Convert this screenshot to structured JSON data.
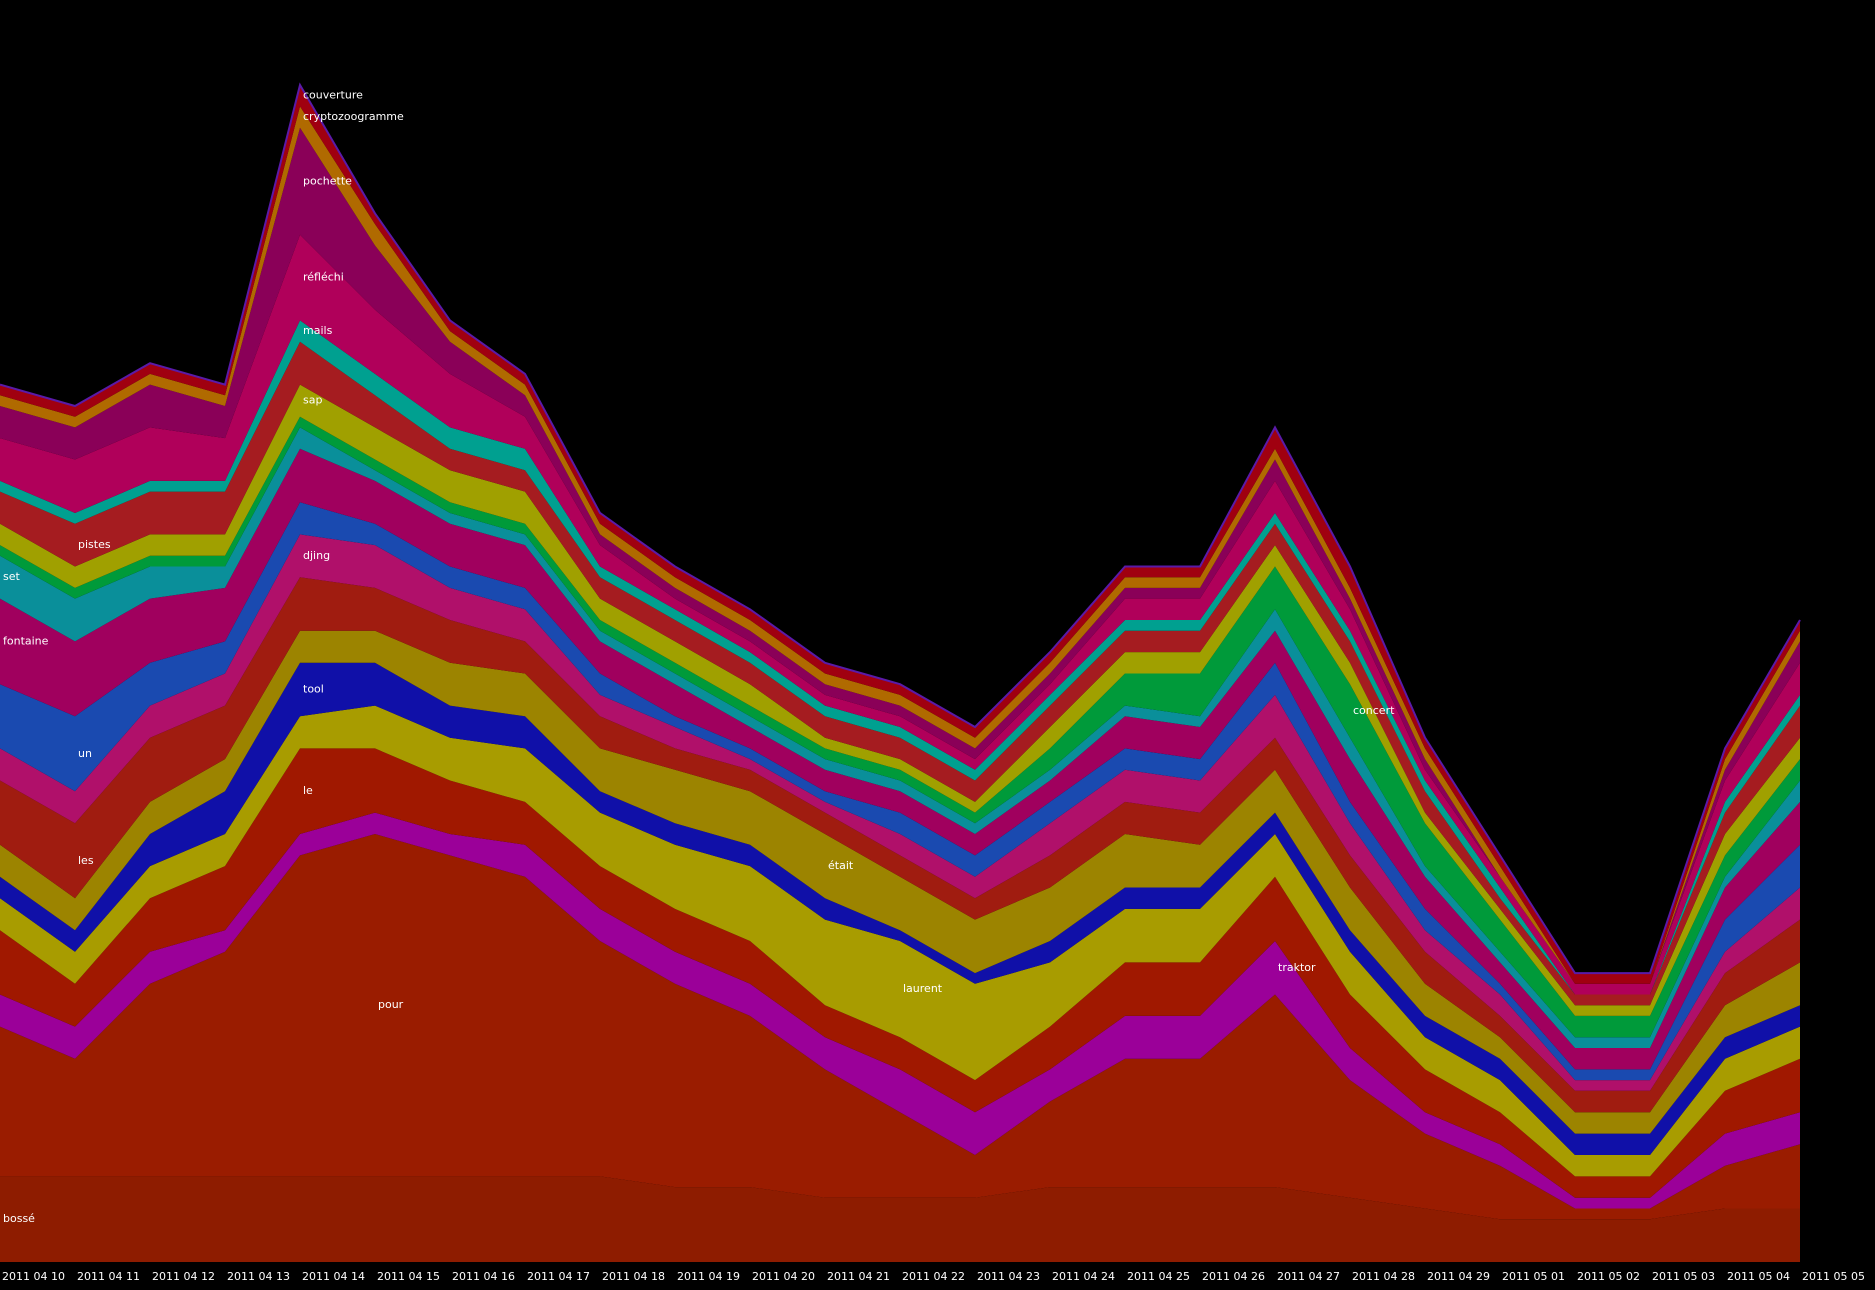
{
  "chart_data": {
    "type": "area",
    "stacked": true,
    "categories": [
      "2011 04 10",
      "2011 04 11",
      "2011 04 12",
      "2011 04 13",
      "2011 04 14",
      "2011 04 15",
      "2011 04 16",
      "2011 04 17",
      "2011 04 18",
      "2011 04 19",
      "2011 04 20",
      "2011 04 21",
      "2011 04 22",
      "2011 04 23",
      "2011 04 24",
      "2011 04 25",
      "2011 04 26",
      "2011 04 27",
      "2011 04 28",
      "2011 04 29",
      "2011 05 01",
      "2011 05 02",
      "2011 05 03",
      "2011 05 04",
      "2011 05 05"
    ],
    "series": [
      {
        "name": "bossé",
        "color": "#8e1c00",
        "values": [
          8,
          8,
          8,
          8,
          8,
          8,
          8,
          8,
          8,
          7,
          7,
          6,
          6,
          6,
          7,
          7,
          7,
          7,
          6,
          5,
          4,
          4,
          4,
          5,
          5
        ]
      },
      {
        "name": "pour",
        "color": "#9a1c00",
        "values": [
          14,
          11,
          18,
          21,
          30,
          32,
          30,
          28,
          22,
          19,
          16,
          12,
          8,
          4,
          8,
          12,
          12,
          18,
          11,
          7,
          5,
          1,
          1,
          4,
          6
        ]
      },
      {
        "name": "traktor",
        "color": "#9b0099",
        "values": [
          3,
          3,
          3,
          2,
          2,
          2,
          2,
          3,
          3,
          3,
          3,
          3,
          4,
          4,
          3,
          4,
          4,
          5,
          3,
          2,
          2,
          1,
          1,
          3,
          3
        ]
      },
      {
        "name": "le",
        "color": "#a01800",
        "values": [
          6,
          4,
          5,
          6,
          8,
          6,
          5,
          4,
          4,
          4,
          4,
          3,
          3,
          3,
          4,
          5,
          5,
          6,
          5,
          4,
          3,
          2,
          2,
          4,
          5
        ]
      },
      {
        "name": "laurent",
        "color": "#a89c00",
        "values": [
          3,
          3,
          3,
          3,
          3,
          4,
          4,
          5,
          5,
          6,
          7,
          8,
          9,
          9,
          6,
          5,
          5,
          4,
          4,
          3,
          3,
          2,
          2,
          3,
          3
        ]
      },
      {
        "name": "tool",
        "color": "#1010a8",
        "values": [
          2,
          2,
          3,
          4,
          5,
          4,
          3,
          3,
          2,
          2,
          2,
          2,
          1,
          1,
          2,
          2,
          2,
          2,
          2,
          2,
          2,
          2,
          2,
          2,
          2
        ]
      },
      {
        "name": "était",
        "color": "#9c8400",
        "values": [
          3,
          3,
          3,
          3,
          3,
          3,
          4,
          4,
          4,
          5,
          5,
          6,
          5,
          5,
          5,
          5,
          4,
          4,
          4,
          3,
          2,
          2,
          2,
          3,
          4
        ]
      },
      {
        "name": "les",
        "color": "#a01c10",
        "values": [
          6,
          7,
          6,
          5,
          5,
          4,
          4,
          3,
          3,
          2,
          2,
          2,
          2,
          2,
          3,
          3,
          3,
          3,
          3,
          3,
          2,
          2,
          2,
          3,
          4
        ]
      },
      {
        "name": "djing",
        "color": "#b0106a",
        "values": [
          3,
          3,
          3,
          3,
          4,
          4,
          3,
          3,
          2,
          2,
          1,
          1,
          2,
          2,
          3,
          3,
          3,
          4,
          3,
          2,
          2,
          1,
          1,
          2,
          3
        ]
      },
      {
        "name": "un",
        "color": "#1a4ab0",
        "values": [
          6,
          7,
          4,
          3,
          3,
          2,
          2,
          2,
          2,
          1,
          1,
          1,
          2,
          2,
          2,
          2,
          2,
          3,
          2,
          2,
          1,
          1,
          1,
          3,
          4
        ]
      },
      {
        "name": "fontaine",
        "color": "#a0005e",
        "values": [
          8,
          7,
          6,
          5,
          5,
          4,
          4,
          4,
          3,
          3,
          2,
          2,
          2,
          2,
          2,
          3,
          3,
          3,
          4,
          3,
          2,
          2,
          2,
          3,
          4
        ]
      },
      {
        "name": "set",
        "color": "#0a8f9a",
        "values": [
          4,
          4,
          3,
          2,
          2,
          1,
          1,
          1,
          1,
          1,
          1,
          1,
          1,
          1,
          1,
          1,
          1,
          2,
          2,
          1,
          1,
          1,
          1,
          1,
          2
        ]
      },
      {
        "name": "concert",
        "color": "#009a3a",
        "values": [
          1,
          1,
          1,
          1,
          1,
          1,
          1,
          1,
          1,
          1,
          1,
          1,
          1,
          1,
          2,
          3,
          4,
          4,
          5,
          4,
          3,
          2,
          2,
          2,
          2
        ]
      },
      {
        "name": "sap",
        "color": "#a0a000",
        "values": [
          2,
          2,
          2,
          2,
          3,
          3,
          3,
          3,
          2,
          2,
          2,
          1,
          1,
          1,
          2,
          2,
          2,
          2,
          2,
          1,
          1,
          1,
          1,
          2,
          2
        ]
      },
      {
        "name": "pistes",
        "color": "#a51c20",
        "values": [
          3,
          4,
          4,
          4,
          4,
          3,
          2,
          2,
          2,
          2,
          2,
          2,
          2,
          2,
          2,
          2,
          2,
          2,
          2,
          2,
          1,
          1,
          1,
          2,
          3
        ]
      },
      {
        "name": "mails",
        "color": "#00a090",
        "values": [
          1,
          1,
          1,
          1,
          2,
          2,
          2,
          2,
          1,
          1,
          1,
          1,
          1,
          1,
          1,
          1,
          1,
          1,
          1,
          1,
          1,
          0,
          0,
          1,
          1
        ]
      },
      {
        "name": "réfléchi",
        "color": "#b0005a",
        "values": [
          4,
          5,
          5,
          4,
          8,
          6,
          5,
          3,
          2,
          1,
          1,
          1,
          1,
          1,
          1,
          2,
          2,
          3,
          2,
          1,
          1,
          1,
          1,
          2,
          3
        ]
      },
      {
        "name": "pochette",
        "color": "#8a0058",
        "values": [
          3,
          3,
          4,
          3,
          10,
          6,
          3,
          2,
          1,
          1,
          1,
          1,
          1,
          1,
          1,
          1,
          1,
          2,
          1,
          1,
          0,
          0,
          0,
          1,
          2
        ]
      },
      {
        "name": "cryptozoogramme",
        "color": "#b06a00",
        "values": [
          1,
          1,
          1,
          1,
          2,
          2,
          1,
          1,
          1,
          1,
          1,
          1,
          1,
          1,
          1,
          1,
          1,
          1,
          1,
          1,
          1,
          0,
          0,
          1,
          1
        ]
      },
      {
        "name": "couverture",
        "color": "#a00010",
        "values": [
          1,
          1,
          1,
          1,
          2,
          1,
          1,
          1,
          1,
          1,
          1,
          1,
          1,
          1,
          1,
          1,
          1,
          2,
          2,
          1,
          1,
          1,
          1,
          1,
          1
        ]
      }
    ]
  }
}
